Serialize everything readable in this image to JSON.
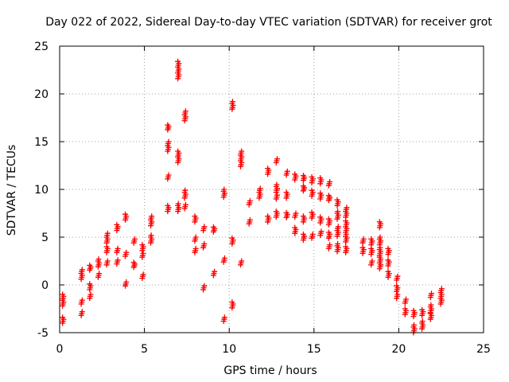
{
  "chart_data": {
    "type": "scatter",
    "title": "Day 022 of 2022, Sidereal Day-to-day VTEC variation (SDTVAR) for receiver grot",
    "xlabel": "GPS time / hours",
    "ylabel": "SDTVAR / TECUs",
    "xlim": [
      0,
      25
    ],
    "ylim": [
      -5,
      25
    ],
    "xticks": [
      "0",
      "5",
      "10",
      "15",
      "20",
      "25"
    ],
    "yticks": [
      "-5",
      "0",
      "5",
      "10",
      "15",
      "20",
      "25"
    ],
    "grid": true,
    "marker": "plus",
    "color": "#ff0000",
    "clusters": [
      [
        0.2,
        -1.6,
        1.2
      ],
      [
        0.2,
        -3.7,
        0.6
      ],
      [
        1.3,
        1.1,
        1.0
      ],
      [
        1.3,
        -1.8,
        0.4
      ],
      [
        1.3,
        -3.0,
        0.4
      ],
      [
        1.8,
        1.8,
        0.5
      ],
      [
        1.8,
        -0.2,
        0.6
      ],
      [
        1.8,
        -1.2,
        0.4
      ],
      [
        2.3,
        2.3,
        0.8
      ],
      [
        2.3,
        1.0,
        0.4
      ],
      [
        2.8,
        4.9,
        1.0
      ],
      [
        2.8,
        3.7,
        0.6
      ],
      [
        2.8,
        2.3,
        0.4
      ],
      [
        3.4,
        6.0,
        0.6
      ],
      [
        3.4,
        3.6,
        0.4
      ],
      [
        3.4,
        2.4,
        0.4
      ],
      [
        3.9,
        7.1,
        0.6
      ],
      [
        3.9,
        3.2,
        0.4
      ],
      [
        3.9,
        0.1,
        0.4
      ],
      [
        4.4,
        4.6,
        0.4
      ],
      [
        4.4,
        2.1,
        0.5
      ],
      [
        4.9,
        3.9,
        0.6
      ],
      [
        4.9,
        3.1,
        0.4
      ],
      [
        4.9,
        0.9,
        0.4
      ],
      [
        5.4,
        6.7,
        1.0
      ],
      [
        5.4,
        4.8,
        0.8
      ],
      [
        6.4,
        16.5,
        0.5
      ],
      [
        6.4,
        14.5,
        1.0
      ],
      [
        6.4,
        11.3,
        0.4
      ],
      [
        6.4,
        8.0,
        0.6
      ],
      [
        7.0,
        22.5,
        1.8
      ],
      [
        7.0,
        13.4,
        1.2
      ],
      [
        7.0,
        8.1,
        0.8
      ],
      [
        7.4,
        17.7,
        1.0
      ],
      [
        7.4,
        9.5,
        0.8
      ],
      [
        7.4,
        8.2,
        0.4
      ],
      [
        8.0,
        6.9,
        0.6
      ],
      [
        8.0,
        4.8,
        0.4
      ],
      [
        8.0,
        3.6,
        0.4
      ],
      [
        8.5,
        5.9,
        0.4
      ],
      [
        8.5,
        4.1,
        0.4
      ],
      [
        8.5,
        -0.3,
        0.4
      ],
      [
        9.1,
        5.8,
        0.5
      ],
      [
        9.1,
        1.2,
        0.4
      ],
      [
        9.7,
        9.6,
        0.8
      ],
      [
        9.7,
        2.6,
        0.4
      ],
      [
        9.7,
        -3.6,
        0.4
      ],
      [
        10.2,
        18.8,
        0.8
      ],
      [
        10.2,
        4.6,
        0.6
      ],
      [
        10.2,
        -2.1,
        0.6
      ],
      [
        10.7,
        13.2,
        1.6
      ],
      [
        10.7,
        2.3,
        0.4
      ],
      [
        11.2,
        8.6,
        0.4
      ],
      [
        11.2,
        6.6,
        0.4
      ],
      [
        11.8,
        9.6,
        1.0
      ],
      [
        12.3,
        11.9,
        0.6
      ],
      [
        12.3,
        6.9,
        0.6
      ],
      [
        12.8,
        13.0,
        0.4
      ],
      [
        12.8,
        10.1,
        0.8
      ],
      [
        12.8,
        9.2,
        0.4
      ],
      [
        12.8,
        7.4,
        0.6
      ],
      [
        13.4,
        11.7,
        0.4
      ],
      [
        13.4,
        9.4,
        0.6
      ],
      [
        13.4,
        7.3,
        0.5
      ],
      [
        13.9,
        11.3,
        0.6
      ],
      [
        13.9,
        7.3,
        0.4
      ],
      [
        13.9,
        5.7,
        0.6
      ],
      [
        14.4,
        11.2,
        0.5
      ],
      [
        14.4,
        10.1,
        0.5
      ],
      [
        14.4,
        6.9,
        0.6
      ],
      [
        14.4,
        5.0,
        0.6
      ],
      [
        14.9,
        11.0,
        0.6
      ],
      [
        14.9,
        9.6,
        0.6
      ],
      [
        14.9,
        7.3,
        0.6
      ],
      [
        14.9,
        5.1,
        0.4
      ],
      [
        15.4,
        10.9,
        0.6
      ],
      [
        15.4,
        9.3,
        0.6
      ],
      [
        15.4,
        6.8,
        0.6
      ],
      [
        15.4,
        5.4,
        0.4
      ],
      [
        15.9,
        10.6,
        0.4
      ],
      [
        15.9,
        9.1,
        0.5
      ],
      [
        15.9,
        6.6,
        0.6
      ],
      [
        15.9,
        5.2,
        0.6
      ],
      [
        15.9,
        4.0,
        0.4
      ],
      [
        16.4,
        8.6,
        0.6
      ],
      [
        16.4,
        7.3,
        0.8
      ],
      [
        16.4,
        5.6,
        1.0
      ],
      [
        16.4,
        3.9,
        0.8
      ],
      [
        16.9,
        7.6,
        1.0
      ],
      [
        16.9,
        6.1,
        1.2
      ],
      [
        16.9,
        4.9,
        0.8
      ],
      [
        16.9,
        3.7,
        0.6
      ],
      [
        17.9,
        4.6,
        0.4
      ],
      [
        17.9,
        3.6,
        0.6
      ],
      [
        18.4,
        4.5,
        0.6
      ],
      [
        18.4,
        3.5,
        0.6
      ],
      [
        18.4,
        2.3,
        0.4
      ],
      [
        18.9,
        6.3,
        0.6
      ],
      [
        18.9,
        4.6,
        0.8
      ],
      [
        18.9,
        3.5,
        0.8
      ],
      [
        18.9,
        2.3,
        1.2
      ],
      [
        19.4,
        3.5,
        0.6
      ],
      [
        19.4,
        2.3,
        0.6
      ],
      [
        19.4,
        1.1,
        0.6
      ],
      [
        19.9,
        0.7,
        0.4
      ],
      [
        19.9,
        -0.4,
        0.6
      ],
      [
        19.9,
        -1.2,
        0.4
      ],
      [
        20.4,
        -1.7,
        0.4
      ],
      [
        20.4,
        -2.8,
        0.6
      ],
      [
        20.9,
        -3.0,
        0.6
      ],
      [
        20.9,
        -4.6,
        0.8
      ],
      [
        21.4,
        -2.9,
        0.6
      ],
      [
        21.4,
        -4.2,
        0.8
      ],
      [
        21.9,
        -1.1,
        0.4
      ],
      [
        21.9,
        -2.5,
        0.8
      ],
      [
        21.9,
        -3.3,
        0.6
      ],
      [
        22.5,
        -1.2,
        1.6
      ]
    ]
  }
}
